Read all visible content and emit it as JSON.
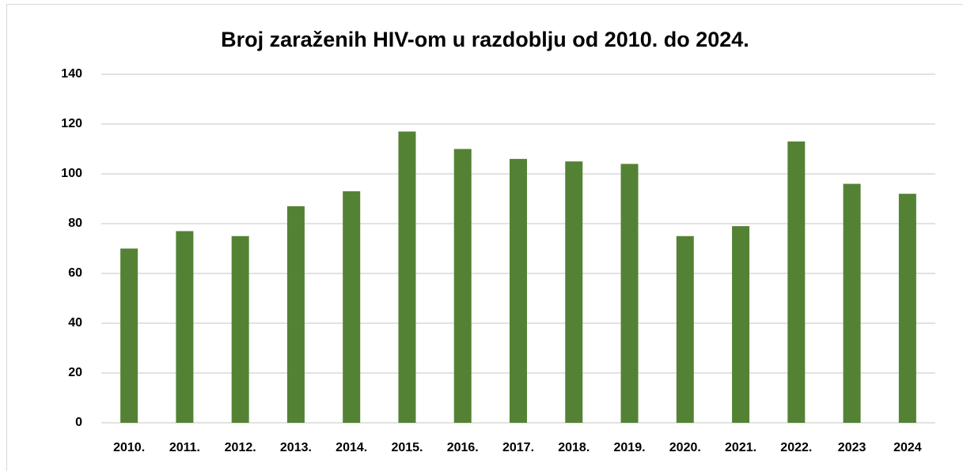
{
  "chart_data": {
    "type": "bar",
    "title": "Broj zaraženih HIV-om u razdoblju od 2010. do 2024.",
    "categories": [
      "2010.",
      "2011.",
      "2012.",
      "2013.",
      "2014.",
      "2015.",
      "2016.",
      "2017.",
      "2018.",
      "2019.",
      "2020.",
      "2021.",
      "2022.",
      "2023",
      "2024"
    ],
    "values": [
      70,
      77,
      75,
      87,
      93,
      117,
      110,
      106,
      105,
      104,
      75,
      79,
      113,
      96,
      92
    ],
    "color": "#548235",
    "ylim": [
      0,
      140
    ],
    "yticks": [
      0,
      20,
      40,
      60,
      80,
      100,
      120,
      140
    ],
    "grid": true
  }
}
